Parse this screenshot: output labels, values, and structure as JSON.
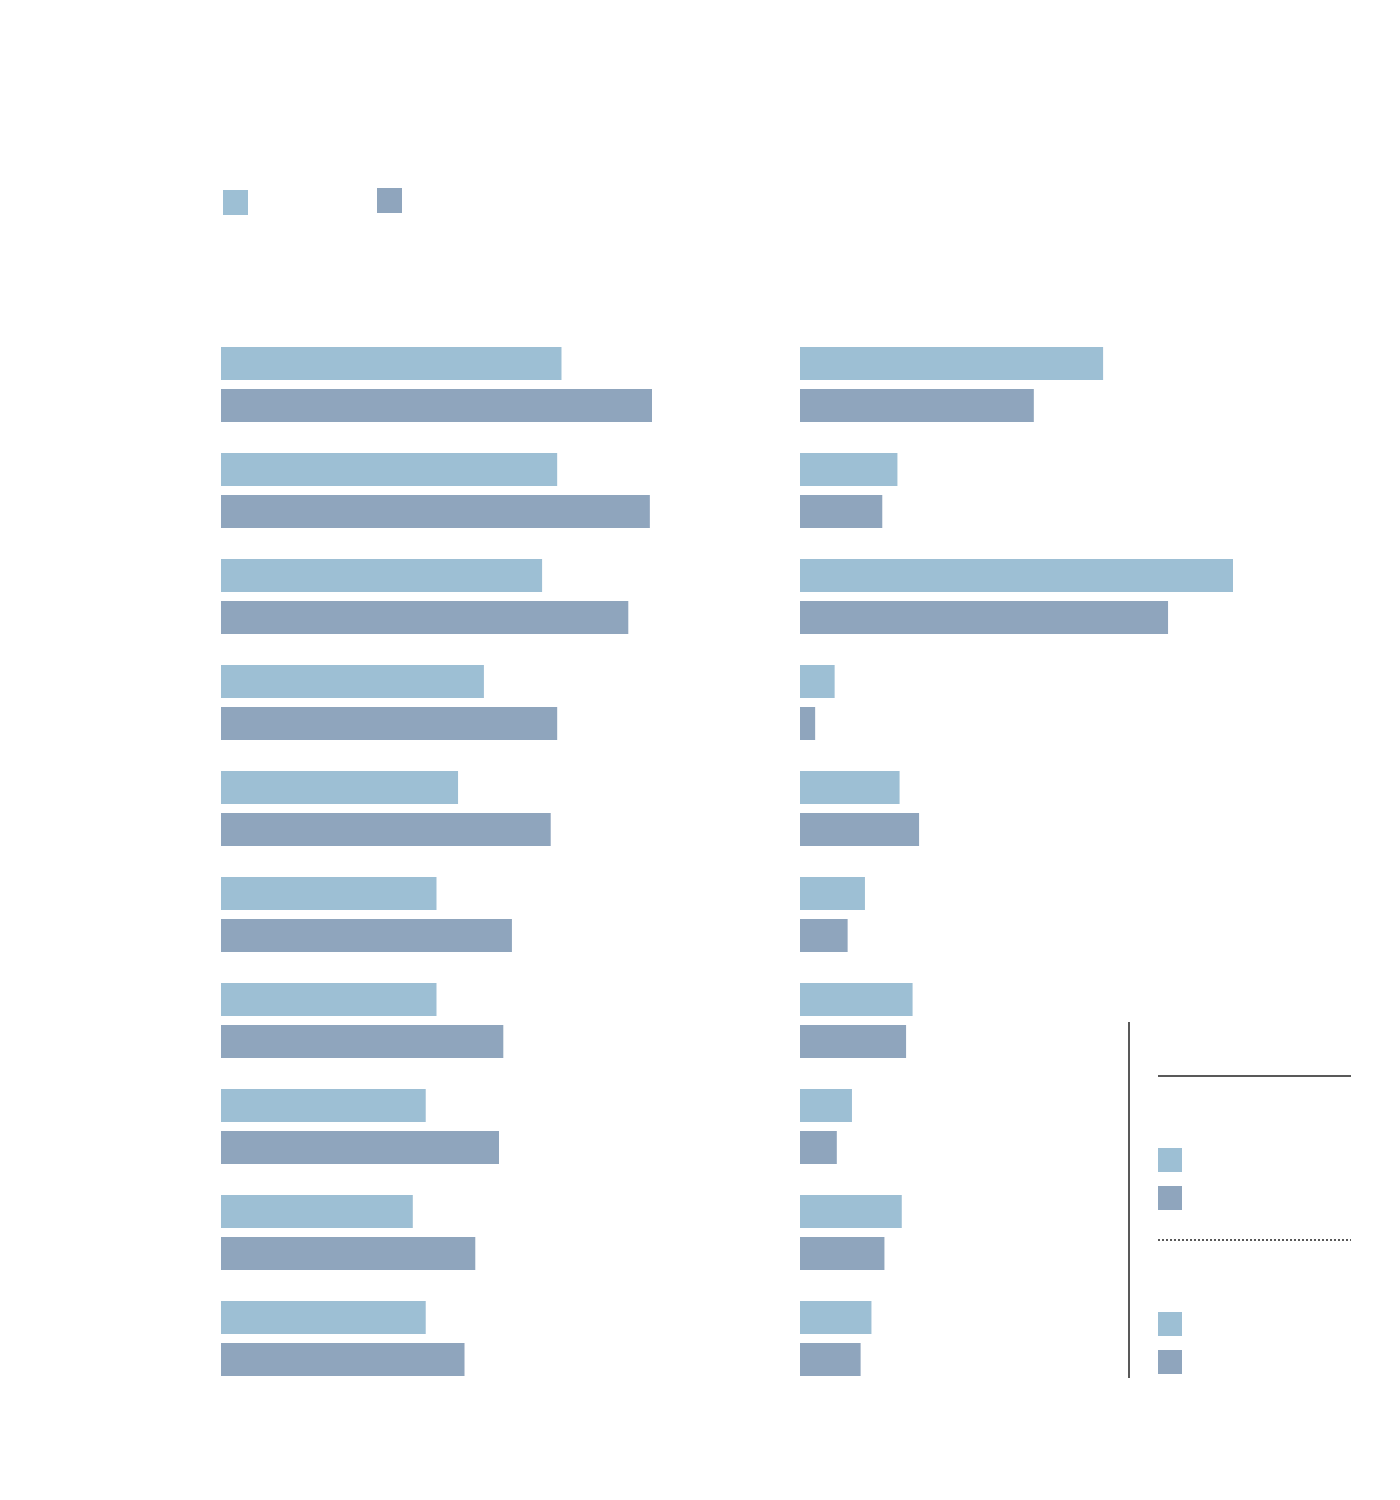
{
  "colors": {
    "series_a": "#9dbfd4",
    "series_b": "#8fa5bd",
    "rule": "#222222"
  },
  "legend": {
    "placement": "top-left",
    "items": [
      {
        "color_key": "series_a"
      },
      {
        "color_key": "series_b"
      }
    ]
  },
  "side_key": {
    "placement": "bottom-right",
    "groups": [
      {
        "rule_style": "solid",
        "items": [
          {
            "color_key": "series_a"
          },
          {
            "color_key": "series_b"
          }
        ]
      },
      {
        "rule_style": "dotted",
        "items": [
          {
            "color_key": "series_a"
          },
          {
            "color_key": "series_b"
          }
        ]
      }
    ]
  },
  "chart_data": [
    {
      "type": "bar",
      "orientation": "horizontal",
      "title": "",
      "xlabel": "",
      "ylabel": "",
      "xlim": [
        0,
        100
      ],
      "grid": false,
      "categories": [
        "",
        "",
        "",
        "",
        "",
        "",
        "",
        "",
        "",
        ""
      ],
      "series": [
        {
          "color_key": "series_a",
          "values": [
            79,
            78,
            74.5,
            61,
            55,
            50,
            50,
            47.5,
            44.5,
            47.5
          ]
        },
        {
          "color_key": "series_b",
          "values": [
            100,
            99.5,
            94.5,
            78,
            76.5,
            67.5,
            65.5,
            64.5,
            59,
            56.5
          ]
        }
      ]
    },
    {
      "type": "bar",
      "orientation": "horizontal",
      "title": "",
      "xlabel": "",
      "ylabel": "",
      "xlim": [
        0,
        100
      ],
      "grid": false,
      "categories": [
        "",
        "",
        "",
        "",
        "",
        "",
        "",
        "",
        "",
        ""
      ],
      "series": [
        {
          "color_key": "series_a",
          "values": [
            70,
            22.5,
            100,
            8,
            23,
            15,
            26,
            12,
            23.5,
            16.5
          ]
        },
        {
          "color_key": "series_b",
          "values": [
            54,
            19,
            85,
            3.5,
            27.5,
            11,
            24.5,
            8.5,
            19.5,
            14
          ]
        }
      ]
    }
  ]
}
